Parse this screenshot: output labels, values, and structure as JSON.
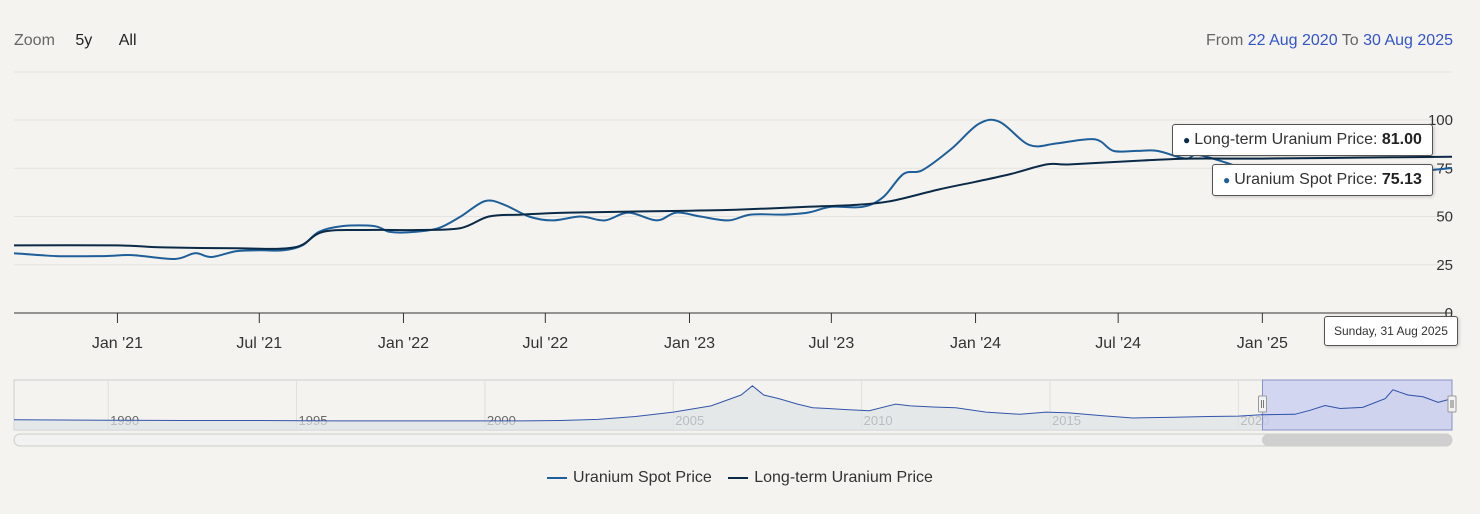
{
  "zoom": {
    "label": "Zoom",
    "buttons": [
      "5y",
      "All"
    ]
  },
  "range": {
    "from_label": "From",
    "from_date": "22 Aug 2020",
    "to_label": "To",
    "to_date": "30 Aug 2025"
  },
  "tooltip": {
    "long_term_label": "Long-term Uranium Price:",
    "long_term_value": "81.00",
    "spot_label": "Uranium Spot Price:",
    "spot_value": "75.13",
    "date": "Sunday, 31 Aug 2025"
  },
  "colors": {
    "spot": "#1f5f99",
    "long_term": "#0a2a47",
    "navigator_mask": "#c8ccf0",
    "navigator_line": "#3355aa"
  },
  "chart_data": {
    "type": "line",
    "x_start": "2020-08-22",
    "x_end": "2025-08-31",
    "x_ticks": [
      {
        "label": "Jan '21",
        "date": "2021-01-01"
      },
      {
        "label": "Jul '21",
        "date": "2021-07-01"
      },
      {
        "label": "Jan '22",
        "date": "2022-01-01"
      },
      {
        "label": "Jul '22",
        "date": "2022-07-01"
      },
      {
        "label": "Jan '23",
        "date": "2023-01-01"
      },
      {
        "label": "Jul '23",
        "date": "2023-07-01"
      },
      {
        "label": "Jan '24",
        "date": "2024-01-01"
      },
      {
        "label": "Jul '24",
        "date": "2024-07-01"
      },
      {
        "label": "Jan '25",
        "date": "2025-01-01"
      }
    ],
    "y_ticks": [
      0,
      25,
      50,
      75,
      100
    ],
    "ylim": [
      0,
      100
    ],
    "series": [
      {
        "name": "Uranium Spot Price",
        "points": [
          [
            "2020-08-22",
            31.0
          ],
          [
            "2020-10-15",
            29.5
          ],
          [
            "2020-12-15",
            29.5
          ],
          [
            "2021-01-20",
            30.0
          ],
          [
            "2021-03-15",
            28.0
          ],
          [
            "2021-04-10",
            31.0
          ],
          [
            "2021-05-01",
            29.0
          ],
          [
            "2021-06-01",
            32.0
          ],
          [
            "2021-07-01",
            32.5
          ],
          [
            "2021-08-01",
            32.5
          ],
          [
            "2021-08-25",
            35.0
          ],
          [
            "2021-09-15",
            42.0
          ],
          [
            "2021-10-15",
            45.0
          ],
          [
            "2021-11-25",
            45.0
          ],
          [
            "2021-12-15",
            42.0
          ],
          [
            "2022-01-15",
            42.0
          ],
          [
            "2022-02-15",
            44.0
          ],
          [
            "2022-03-15",
            50.0
          ],
          [
            "2022-04-15",
            58.0
          ],
          [
            "2022-05-10",
            56.0
          ],
          [
            "2022-06-10",
            50.0
          ],
          [
            "2022-07-10",
            48.0
          ],
          [
            "2022-08-15",
            50.0
          ],
          [
            "2022-09-15",
            48.0
          ],
          [
            "2022-10-15",
            52.0
          ],
          [
            "2022-11-20",
            48.0
          ],
          [
            "2022-12-15",
            52.0
          ],
          [
            "2023-01-15",
            50.0
          ],
          [
            "2023-02-20",
            48.0
          ],
          [
            "2023-03-20",
            51.0
          ],
          [
            "2023-05-01",
            51.0
          ],
          [
            "2023-06-01",
            52.0
          ],
          [
            "2023-07-01",
            55.0
          ],
          [
            "2023-08-10",
            55.0
          ],
          [
            "2023-09-05",
            60.0
          ],
          [
            "2023-10-01",
            72.0
          ],
          [
            "2023-10-25",
            74.0
          ],
          [
            "2023-12-01",
            85.0
          ],
          [
            "2024-01-05",
            98.0
          ],
          [
            "2024-02-01",
            99.0
          ],
          [
            "2024-03-10",
            87.0
          ],
          [
            "2024-04-15",
            88.0
          ],
          [
            "2024-06-01",
            90.0
          ],
          [
            "2024-06-25",
            84.0
          ],
          [
            "2024-07-25",
            84.0
          ],
          [
            "2024-08-20",
            84.0
          ],
          [
            "2024-09-25",
            80.0
          ],
          [
            "2024-10-10",
            82.0
          ],
          [
            "2024-11-15",
            78.0
          ],
          [
            "2024-12-20",
            73.0
          ],
          [
            "2025-01-31",
            70.0
          ],
          [
            "2025-03-15",
            65.0
          ],
          [
            "2025-05-01",
            68.0
          ],
          [
            "2025-06-20",
            72.0
          ],
          [
            "2025-08-31",
            75.13
          ]
        ]
      },
      {
        "name": "Long-term Uranium Price",
        "points": [
          [
            "2020-08-22",
            35.0
          ],
          [
            "2020-12-31",
            35.0
          ],
          [
            "2021-03-01",
            34.0
          ],
          [
            "2021-06-01",
            33.5
          ],
          [
            "2021-08-15",
            34.0
          ],
          [
            "2021-09-20",
            42.0
          ],
          [
            "2021-11-15",
            43.0
          ],
          [
            "2022-01-20",
            43.0
          ],
          [
            "2022-03-15",
            44.0
          ],
          [
            "2022-04-20",
            50.0
          ],
          [
            "2022-06-01",
            51.0
          ],
          [
            "2022-08-01",
            52.0
          ],
          [
            "2023-01-01",
            53.0
          ],
          [
            "2023-03-01",
            53.5
          ],
          [
            "2023-06-01",
            55.0
          ],
          [
            "2023-08-01",
            56.0
          ],
          [
            "2023-09-15",
            58.0
          ],
          [
            "2023-11-15",
            64.0
          ],
          [
            "2024-01-01",
            68.0
          ],
          [
            "2024-02-15",
            72.0
          ],
          [
            "2024-04-01",
            77.0
          ],
          [
            "2024-05-01",
            77.0
          ],
          [
            "2024-08-01",
            79.0
          ],
          [
            "2024-10-01",
            80.0
          ],
          [
            "2025-01-01",
            80.0
          ],
          [
            "2025-05-01",
            80.5
          ],
          [
            "2025-08-31",
            81.0
          ]
        ]
      }
    ]
  },
  "navigator": {
    "x_labels": [
      "1990",
      "1995",
      "2000",
      "2005",
      "2010",
      "2015",
      "2020"
    ],
    "year_start": 1987.5,
    "year_end": 2025.67,
    "selected_start": 2020.64,
    "selected_end": 2025.67,
    "points": [
      [
        1987.5,
        17
      ],
      [
        1990,
        16
      ],
      [
        1992,
        15
      ],
      [
        1994,
        15
      ],
      [
        1996,
        14
      ],
      [
        1998,
        14
      ],
      [
        2000,
        14
      ],
      [
        2001,
        14
      ],
      [
        2002,
        15
      ],
      [
        2003,
        18
      ],
      [
        2004,
        26
      ],
      [
        2005,
        38
      ],
      [
        2006,
        55
      ],
      [
        2006.8,
        85
      ],
      [
        2007.1,
        110
      ],
      [
        2007.4,
        85
      ],
      [
        2007.8,
        75
      ],
      [
        2008.3,
        60
      ],
      [
        2008.7,
        50
      ],
      [
        2009.1,
        48
      ],
      [
        2009.6,
        45
      ],
      [
        2010.2,
        42
      ],
      [
        2010.9,
        60
      ],
      [
        2011.3,
        55
      ],
      [
        2011.9,
        52
      ],
      [
        2012.5,
        50
      ],
      [
        2013.3,
        38
      ],
      [
        2014.2,
        32
      ],
      [
        2014.9,
        38
      ],
      [
        2015.5,
        36
      ],
      [
        2016.4,
        28
      ],
      [
        2017.2,
        22
      ],
      [
        2018.3,
        24
      ],
      [
        2019.2,
        26
      ],
      [
        2020.0,
        27
      ],
      [
        2020.6,
        31
      ],
      [
        2021.5,
        32
      ],
      [
        2021.9,
        43
      ],
      [
        2022.3,
        56
      ],
      [
        2022.7,
        48
      ],
      [
        2023.3,
        51
      ],
      [
        2023.9,
        75
      ],
      [
        2024.1,
        99
      ],
      [
        2024.5,
        85
      ],
      [
        2024.9,
        80
      ],
      [
        2025.3,
        65
      ],
      [
        2025.67,
        75
      ]
    ]
  },
  "legend": [
    "Uranium Spot Price",
    "Long-term Uranium Price"
  ]
}
